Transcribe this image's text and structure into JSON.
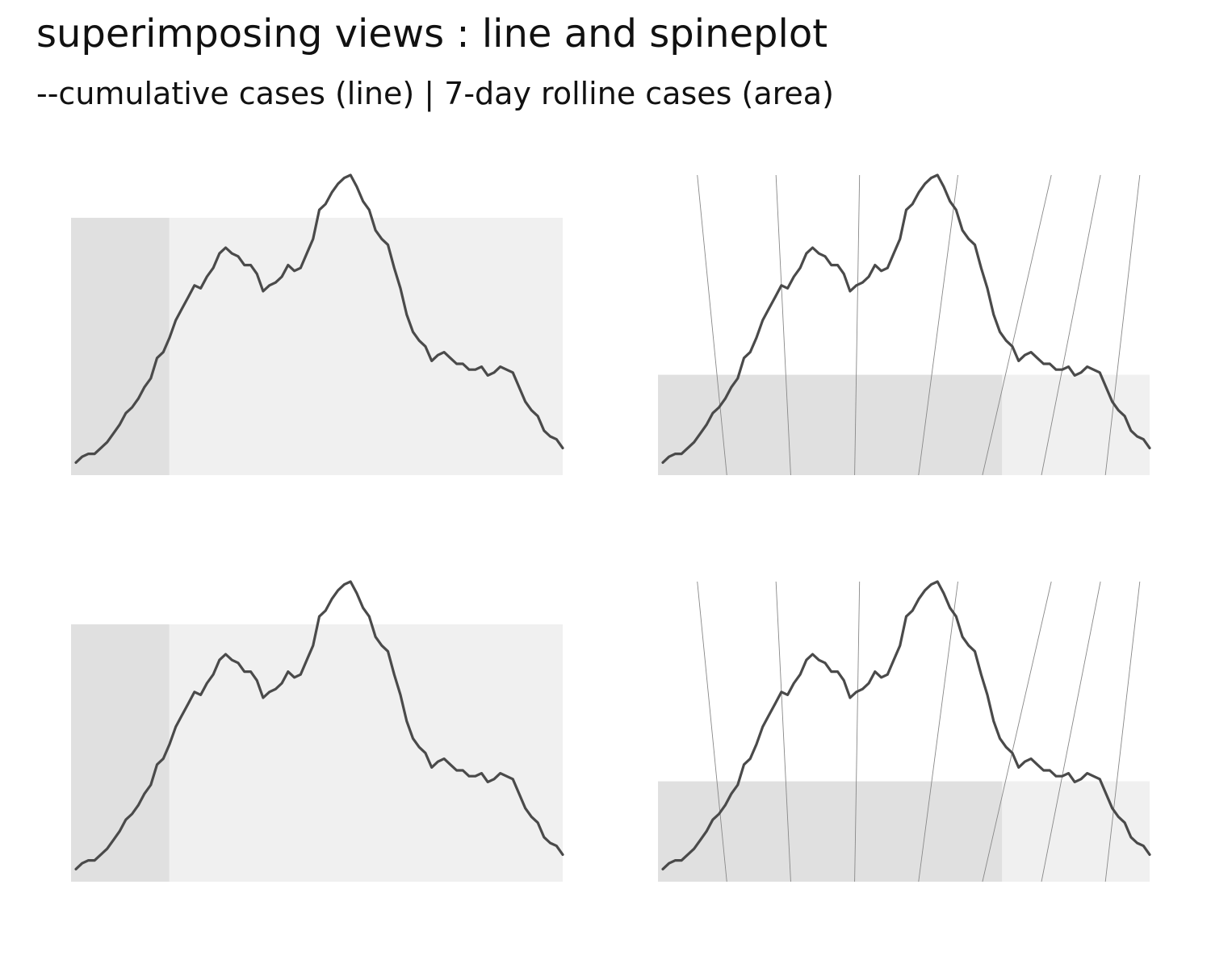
{
  "title": "superimposing views : line and spineplot",
  "subtitle": "--cumulative cases (line) | 7-day rolline cases (area)",
  "colors": {
    "background": "#ffffff",
    "line": "#4a4a4a",
    "spine_dark": "#e0e0e0",
    "spine_light": "#f0f0f0",
    "slant_lines": "#888888"
  },
  "chart_data": [
    {
      "type": "line",
      "panel": "top-left",
      "axes": "off",
      "grid": false,
      "line_series": [
        0.01,
        0.03,
        0.04,
        0.04,
        0.06,
        0.08,
        0.11,
        0.14,
        0.18,
        0.2,
        0.23,
        0.27,
        0.3,
        0.37,
        0.39,
        0.44,
        0.5,
        0.54,
        0.58,
        0.62,
        0.61,
        0.65,
        0.68,
        0.73,
        0.75,
        0.73,
        0.72,
        0.69,
        0.69,
        0.66,
        0.6,
        0.62,
        0.63,
        0.65,
        0.69,
        0.67,
        0.68,
        0.73,
        0.78,
        0.88,
        0.9,
        0.94,
        0.97,
        0.99,
        1.0,
        0.96,
        0.91,
        0.88,
        0.81,
        0.78,
        0.76,
        0.68,
        0.61,
        0.52,
        0.46,
        0.43,
        0.41,
        0.36,
        0.38,
        0.39,
        0.37,
        0.35,
        0.35,
        0.33,
        0.33,
        0.34,
        0.31,
        0.32,
        0.34,
        0.33,
        0.32,
        0.27,
        0.22,
        0.19,
        0.17,
        0.12,
        0.1,
        0.09,
        0.06
      ],
      "spine": {
        "value": 1.0,
        "split": 0.2
      }
    },
    {
      "type": "line",
      "panel": "top-right",
      "axes": "off",
      "grid": false,
      "line_series": [
        0.01,
        0.03,
        0.04,
        0.04,
        0.06,
        0.08,
        0.11,
        0.14,
        0.18,
        0.2,
        0.23,
        0.27,
        0.3,
        0.37,
        0.39,
        0.44,
        0.5,
        0.54,
        0.58,
        0.62,
        0.61,
        0.65,
        0.68,
        0.73,
        0.75,
        0.73,
        0.72,
        0.69,
        0.69,
        0.66,
        0.6,
        0.62,
        0.63,
        0.65,
        0.69,
        0.67,
        0.68,
        0.73,
        0.78,
        0.88,
        0.9,
        0.94,
        0.97,
        0.99,
        1.0,
        0.96,
        0.91,
        0.88,
        0.81,
        0.78,
        0.76,
        0.68,
        0.61,
        0.52,
        0.46,
        0.43,
        0.41,
        0.36,
        0.38,
        0.39,
        0.37,
        0.35,
        0.35,
        0.33,
        0.33,
        0.34,
        0.31,
        0.32,
        0.34,
        0.33,
        0.32,
        0.27,
        0.22,
        0.19,
        0.17,
        0.12,
        0.1,
        0.09,
        0.06
      ],
      "spine": {
        "value": 0.39,
        "split": 0.7
      },
      "slant_lines": [
        {
          "top": 0.08,
          "bottom": 0.14
        },
        {
          "top": 0.24,
          "bottom": 0.27
        },
        {
          "top": 0.41,
          "bottom": 0.4
        },
        {
          "top": 0.61,
          "bottom": 0.53
        },
        {
          "top": 0.8,
          "bottom": 0.66
        },
        {
          "top": 0.9,
          "bottom": 0.78
        },
        {
          "top": 0.98,
          "bottom": 0.91
        }
      ]
    },
    {
      "type": "line",
      "panel": "bottom-left",
      "axes": "off",
      "grid": false,
      "line_series": [
        0.01,
        0.03,
        0.04,
        0.04,
        0.06,
        0.08,
        0.11,
        0.14,
        0.18,
        0.2,
        0.23,
        0.27,
        0.3,
        0.37,
        0.39,
        0.44,
        0.5,
        0.54,
        0.58,
        0.62,
        0.61,
        0.65,
        0.68,
        0.73,
        0.75,
        0.73,
        0.72,
        0.69,
        0.69,
        0.66,
        0.6,
        0.62,
        0.63,
        0.65,
        0.69,
        0.67,
        0.68,
        0.73,
        0.78,
        0.88,
        0.9,
        0.94,
        0.97,
        0.99,
        1.0,
        0.96,
        0.91,
        0.88,
        0.81,
        0.78,
        0.76,
        0.68,
        0.61,
        0.52,
        0.46,
        0.43,
        0.41,
        0.36,
        0.38,
        0.39,
        0.37,
        0.35,
        0.35,
        0.33,
        0.33,
        0.34,
        0.31,
        0.32,
        0.34,
        0.33,
        0.32,
        0.27,
        0.22,
        0.19,
        0.17,
        0.12,
        0.1,
        0.09,
        0.06
      ],
      "spine": {
        "value": 1.0,
        "split": 0.2
      }
    },
    {
      "type": "line",
      "panel": "bottom-right",
      "axes": "off",
      "grid": false,
      "line_series": [
        0.01,
        0.03,
        0.04,
        0.04,
        0.06,
        0.08,
        0.11,
        0.14,
        0.18,
        0.2,
        0.23,
        0.27,
        0.3,
        0.37,
        0.39,
        0.44,
        0.5,
        0.54,
        0.58,
        0.62,
        0.61,
        0.65,
        0.68,
        0.73,
        0.75,
        0.73,
        0.72,
        0.69,
        0.69,
        0.66,
        0.6,
        0.62,
        0.63,
        0.65,
        0.69,
        0.67,
        0.68,
        0.73,
        0.78,
        0.88,
        0.9,
        0.94,
        0.97,
        0.99,
        1.0,
        0.96,
        0.91,
        0.88,
        0.81,
        0.78,
        0.76,
        0.68,
        0.61,
        0.52,
        0.46,
        0.43,
        0.41,
        0.36,
        0.38,
        0.39,
        0.37,
        0.35,
        0.35,
        0.33,
        0.33,
        0.34,
        0.31,
        0.32,
        0.34,
        0.33,
        0.32,
        0.27,
        0.22,
        0.19,
        0.17,
        0.12,
        0.1,
        0.09,
        0.06
      ],
      "spine": {
        "value": 0.39,
        "split": 0.7
      },
      "slant_lines": [
        {
          "top": 0.08,
          "bottom": 0.14
        },
        {
          "top": 0.24,
          "bottom": 0.27
        },
        {
          "top": 0.41,
          "bottom": 0.4
        },
        {
          "top": 0.61,
          "bottom": 0.53
        },
        {
          "top": 0.8,
          "bottom": 0.66
        },
        {
          "top": 0.9,
          "bottom": 0.78
        },
        {
          "top": 0.98,
          "bottom": 0.91
        }
      ]
    }
  ]
}
